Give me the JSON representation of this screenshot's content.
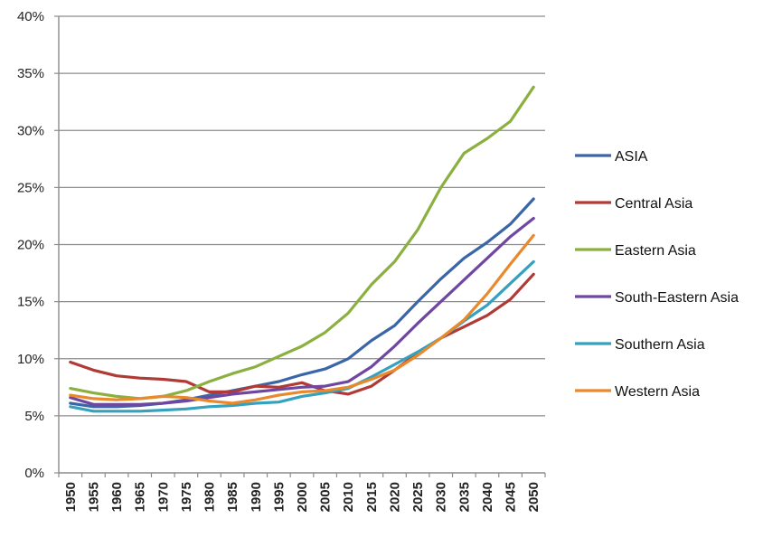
{
  "chart_data": {
    "type": "line",
    "title": "",
    "xlabel": "",
    "ylabel": "",
    "x": [
      "1950",
      "1955",
      "1960",
      "1965",
      "1970",
      "1975",
      "1980",
      "1985",
      "1990",
      "1995",
      "2000",
      "2005",
      "2010",
      "2015",
      "2020",
      "2025",
      "2030",
      "2035",
      "2040",
      "2045",
      "2050"
    ],
    "ylim": [
      0,
      40
    ],
    "yticks": [
      0,
      5,
      10,
      15,
      20,
      25,
      30,
      35,
      40
    ],
    "ytick_labels": [
      "0%",
      "5%",
      "10%",
      "15%",
      "20%",
      "25%",
      "30%",
      "35%",
      "40%"
    ],
    "grid": "horizontal",
    "legend": "right",
    "series": [
      {
        "name": "ASIA",
        "color": "#3a66a8",
        "values": [
          6.1,
          5.8,
          5.8,
          5.9,
          6.1,
          6.4,
          6.8,
          7.2,
          7.6,
          8.0,
          8.6,
          9.1,
          10.0,
          11.6,
          12.9,
          15.0,
          17.0,
          18.8,
          20.2,
          21.8,
          24.0
        ]
      },
      {
        "name": "Central Asia",
        "color": "#b03a35",
        "values": [
          9.7,
          9.0,
          8.5,
          8.3,
          8.2,
          8.0,
          7.1,
          7.1,
          7.6,
          7.5,
          7.9,
          7.2,
          6.9,
          7.6,
          9.0,
          10.5,
          11.8,
          12.8,
          13.8,
          15.2,
          17.4
        ]
      },
      {
        "name": "Eastern Asia",
        "color": "#8bb040",
        "values": [
          7.4,
          7.0,
          6.7,
          6.5,
          6.7,
          7.2,
          8.0,
          8.7,
          9.3,
          10.2,
          11.1,
          12.3,
          14.0,
          16.5,
          18.5,
          21.3,
          25.0,
          28.0,
          29.3,
          30.8,
          33.8
        ]
      },
      {
        "name": "South-Eastern Asia",
        "color": "#7047a0",
        "values": [
          6.6,
          6.0,
          6.0,
          6.0,
          6.1,
          6.3,
          6.6,
          6.9,
          7.1,
          7.3,
          7.5,
          7.6,
          8.0,
          9.3,
          11.1,
          13.1,
          15.0,
          16.9,
          18.8,
          20.7,
          22.3
        ]
      },
      {
        "name": "Southern Asia",
        "color": "#35a1bf",
        "values": [
          5.8,
          5.4,
          5.4,
          5.4,
          5.5,
          5.6,
          5.8,
          5.9,
          6.1,
          6.2,
          6.7,
          7.0,
          7.4,
          8.4,
          9.5,
          10.6,
          11.8,
          13.3,
          14.7,
          16.6,
          18.5
        ]
      },
      {
        "name": "Western Asia",
        "color": "#e8892c",
        "values": [
          6.8,
          6.5,
          6.4,
          6.5,
          6.7,
          6.6,
          6.3,
          6.1,
          6.4,
          6.8,
          7.1,
          7.2,
          7.5,
          8.2,
          9.0,
          10.3,
          11.8,
          13.4,
          15.7,
          18.3,
          20.8
        ]
      }
    ]
  }
}
